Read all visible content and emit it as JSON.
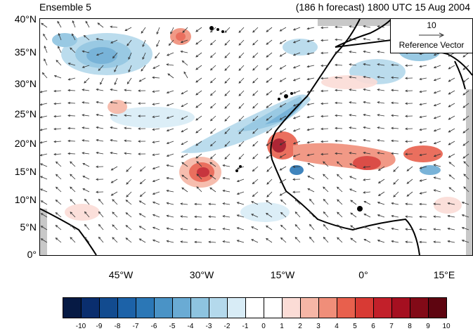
{
  "header": {
    "ensemble_label": "Ensemble 5",
    "forecast_label": "(186 h forecast) 1800 UTC 15 Aug 2004"
  },
  "axes": {
    "lat_labels": [
      "40°N",
      "35°N",
      "30°N",
      "25°N",
      "20°N",
      "15°N",
      "10°N",
      "5°N",
      "0°"
    ],
    "lon_labels": [
      "45°W",
      "30°W",
      "15°W",
      "0°",
      "15°E"
    ]
  },
  "reference_vector": {
    "magnitude": "10",
    "label": "Reference Vector"
  },
  "colorbar": {
    "labels": [
      "-10",
      "-9",
      "-8",
      "-7",
      "-6",
      "-5",
      "-4",
      "-3",
      "-2",
      "-1",
      "0",
      "1",
      "2",
      "3",
      "4",
      "5",
      "6",
      "7",
      "8",
      "9",
      "10"
    ],
    "colors": [
      "#061a44",
      "#0a2e6e",
      "#124b8f",
      "#1c62a8",
      "#2b77b6",
      "#4a93c6",
      "#6aabd4",
      "#8ec4e0",
      "#b4d9ec",
      "#d8ecf6",
      "#ffffff",
      "#ffffff",
      "#fbdcd6",
      "#f6b6a6",
      "#f08e79",
      "#e8604d",
      "#d83a34",
      "#c2202a",
      "#a50f20",
      "#820a17",
      "#5e0510"
    ]
  },
  "map": {
    "land_outline_color": "#000000",
    "missing_data_color": "#c8c8c8",
    "vector_color": "#333333"
  }
}
